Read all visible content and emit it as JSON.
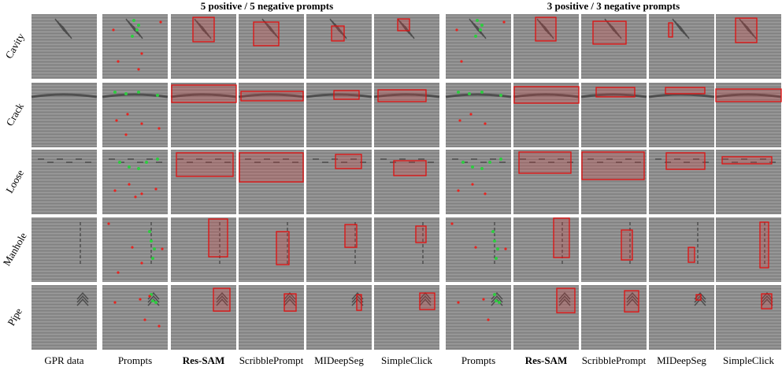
{
  "groups": [
    {
      "title": "5 positive / 5 negative prompts"
    },
    {
      "title": "3 positive / 3 negative prompts"
    }
  ],
  "rows": [
    "Cavity",
    "Crack",
    "Loose",
    "Manhole",
    "Pipe"
  ],
  "columns": [
    "GPR data",
    "Prompts",
    "Res-SAM",
    "ScribblePrompt",
    "MIDeepSeg",
    "SimpleClick",
    "Prompts",
    "Res-SAM",
    "ScribblePrompt",
    "MIDeepSeg",
    "SimpleClick"
  ]
}
